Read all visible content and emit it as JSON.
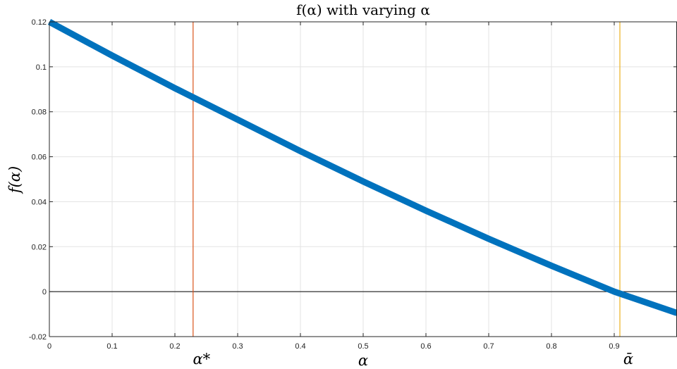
{
  "chart_data": {
    "type": "line",
    "title": "f(α) with varying α",
    "xlabel": "α",
    "ylabel": "f(α)",
    "xlim": [
      0,
      1
    ],
    "ylim": [
      -0.02,
      0.12
    ],
    "grid": true,
    "x_ticks": [
      "0",
      "0.1",
      "0.2",
      "0.3",
      "0.4",
      "0.5",
      "0.6",
      "0.7",
      "0.8",
      "0.9"
    ],
    "y_ticks": [
      "-0.02",
      "0",
      "0.02",
      "0.04",
      "0.06",
      "0.08",
      "0.1",
      "0.12"
    ],
    "series": [
      {
        "color": "#0072BD",
        "x": [
          0,
          0.1,
          0.2,
          0.3,
          0.4,
          0.5,
          0.6,
          0.7,
          0.8,
          0.9,
          1.0
        ],
        "y": [
          0.12,
          0.105,
          0.0905,
          0.0765,
          0.0625,
          0.049,
          0.036,
          0.0235,
          0.0115,
          0.0,
          -0.0095
        ]
      }
    ],
    "vertical_lines": [
      {
        "x": 0.229,
        "label": "α*",
        "color": "#D95319"
      },
      {
        "x": 0.909,
        "label": "ᾱ",
        "color": "#EDB120"
      }
    ],
    "horizontal_lines": [
      {
        "y": 0,
        "color": "#000000"
      }
    ]
  }
}
